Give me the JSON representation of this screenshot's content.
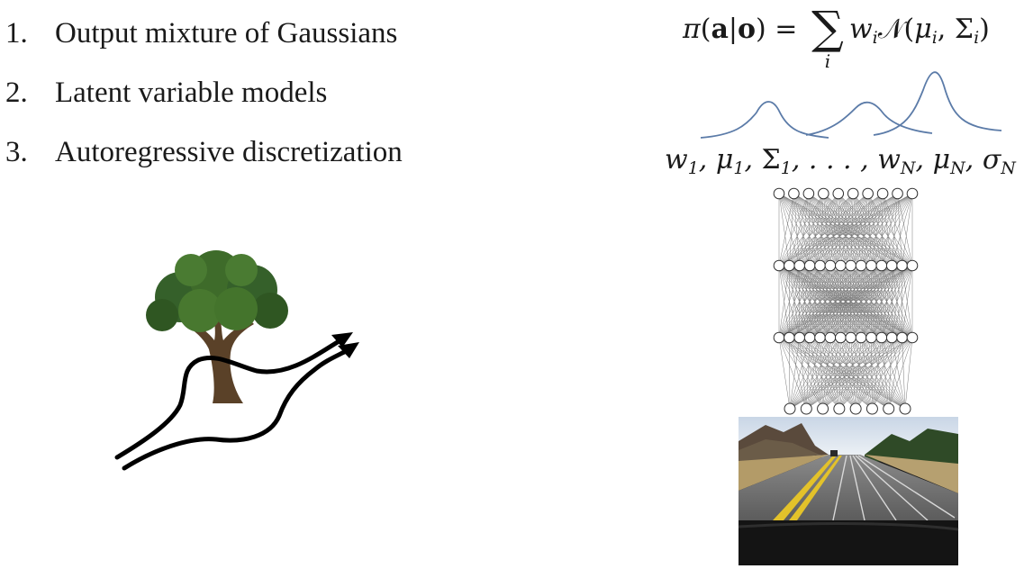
{
  "list_items": [
    {
      "num": "1.",
      "text": "Output mixture of Gaussians"
    },
    {
      "num": "2.",
      "text": "Latent variable models"
    },
    {
      "num": "3.",
      "text": "Autoregressive discretization"
    }
  ],
  "formula": {
    "pi": "π",
    "open": "(",
    "a": "a",
    "bar": "|",
    "o": "o",
    "close": ")",
    "eq": " = ",
    "sigma": "∑",
    "index": "i",
    "w": "w",
    "w_sub": "i",
    "N": "𝒩",
    "args_open": "(",
    "mu": "μ",
    "mu_sub": "i",
    "comma": ", ",
    "Sigma": "Σ",
    "Sigma_sub": "i",
    "args_close": ")"
  },
  "params": {
    "w1": "w",
    "w1_sub": "1",
    "sep1": ", ",
    "mu1": "μ",
    "mu1_sub": "1",
    "sep2": ", ",
    "S1": "Σ",
    "S1_sub": "1",
    "sep3": ", . . . , ",
    "wN": "w",
    "wN_sub": "N",
    "sep4": ", ",
    "muN": "μ",
    "muN_sub": "N",
    "sep5": ", ",
    "sN": "σ",
    "sN_sub": "N"
  },
  "network": {
    "layers": [
      {
        "nodes": 10,
        "style": "dense"
      },
      {
        "nodes": 14,
        "style": "dense"
      },
      {
        "nodes": 14,
        "style": "dense"
      },
      {
        "nodes": 8,
        "style": "spaced"
      }
    ]
  },
  "colors": {
    "gaussian_curve": "#5b7ba8",
    "network_line": "#7a7a7a",
    "tree_foliage": "#3e6b2a",
    "tree_trunk": "#5a4128",
    "arrow": "#000000"
  }
}
